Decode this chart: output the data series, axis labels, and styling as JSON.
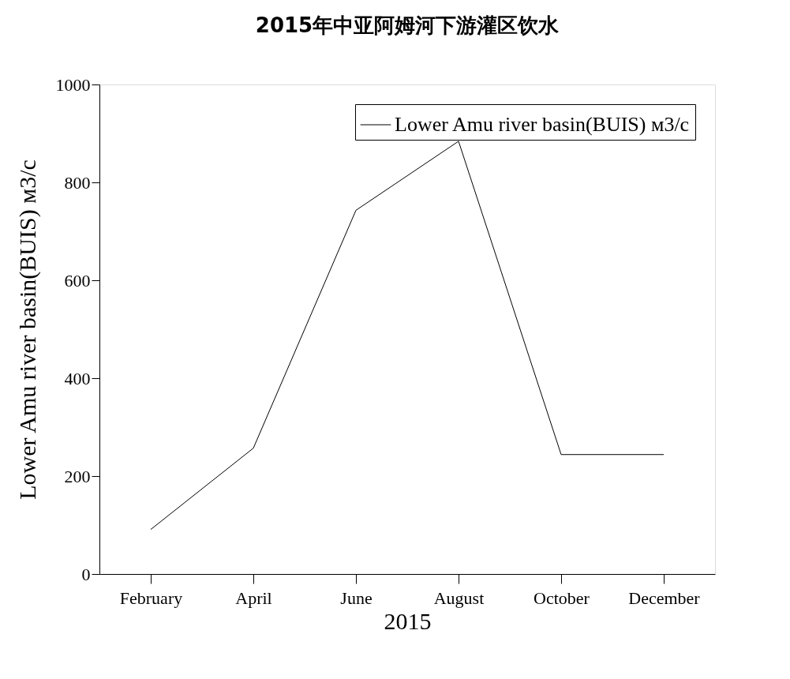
{
  "chart_data": {
    "type": "line",
    "title": "2015年中亚阿姆河下游灌区饮水",
    "xlabel": "2015",
    "ylabel": "Lower Amu river basin(BUIS) м3/с",
    "categories": [
      "February",
      "April",
      "June",
      "August",
      "October",
      "December"
    ],
    "series": [
      {
        "name": "Lower Amu river basin(BUIS) м3/с",
        "color": "#000000",
        "values": [
          91,
          257,
          743,
          884,
          244,
          244
        ]
      }
    ],
    "ylim": [
      0,
      1000
    ],
    "yticks": [
      0,
      200,
      400,
      600,
      800,
      1000
    ],
    "grid": false,
    "legend": "top right",
    "marker": "none",
    "line_style": "solid"
  }
}
